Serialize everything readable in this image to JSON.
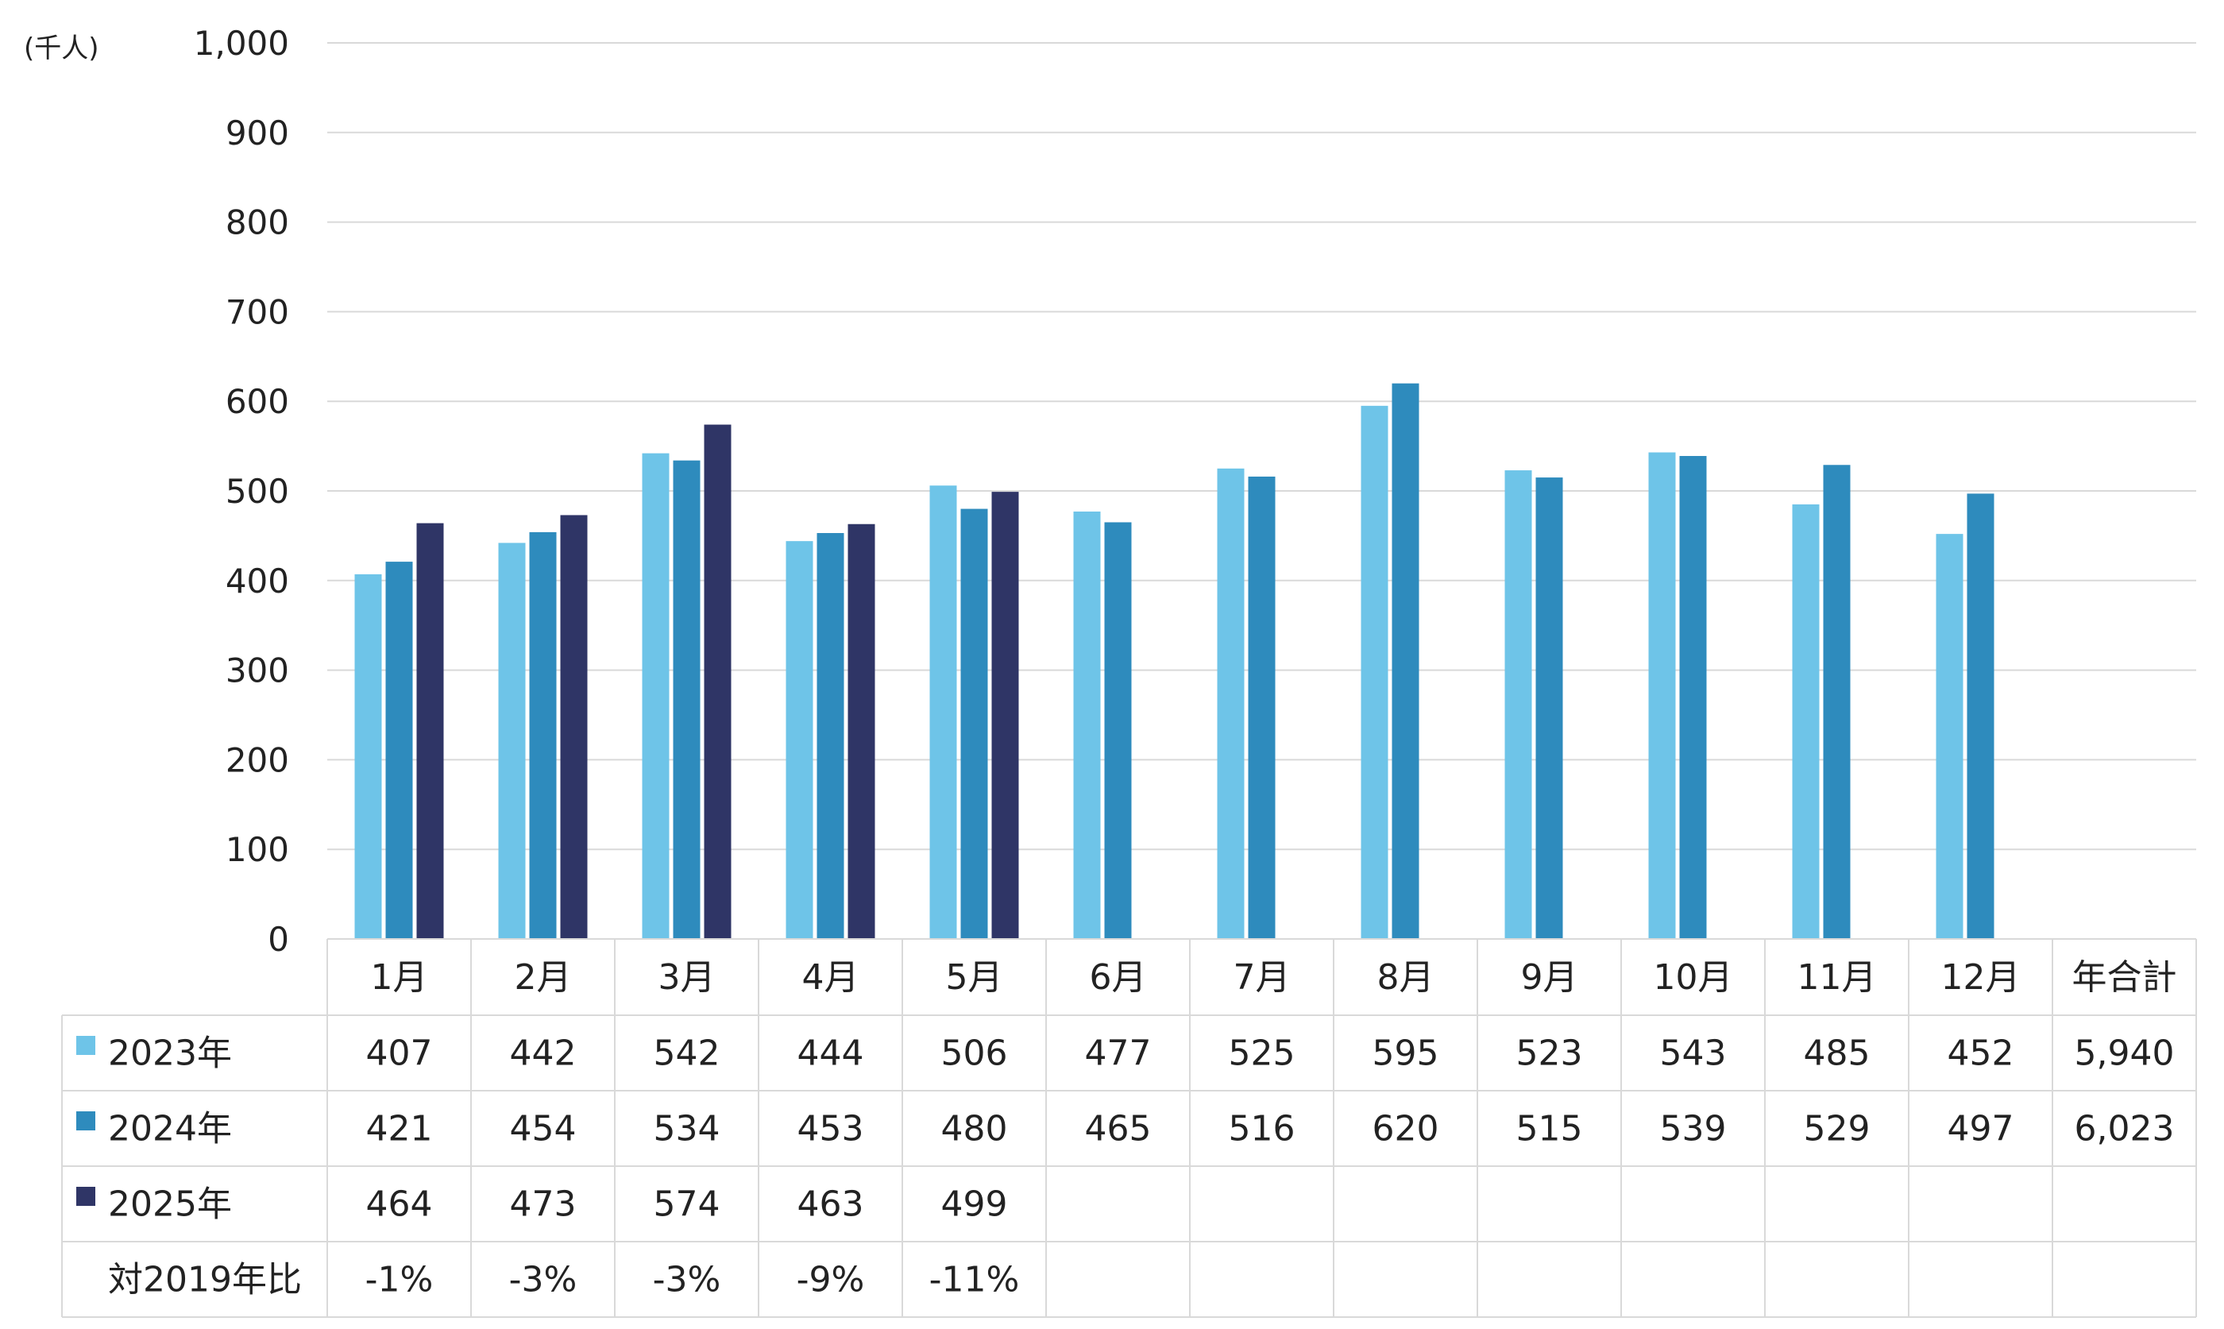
{
  "chart_data": {
    "type": "bar",
    "unit_label": "(千人)",
    "ylim": [
      0,
      1000
    ],
    "yticks": [
      "0",
      "100",
      "200",
      "300",
      "400",
      "500",
      "600",
      "700",
      "800",
      "900",
      "1,000"
    ],
    "categories": [
      "1月",
      "2月",
      "3月",
      "4月",
      "5月",
      "6月",
      "7月",
      "8月",
      "9月",
      "10月",
      "11月",
      "12月"
    ],
    "total_header": "年合計",
    "grid": true,
    "colors": [
      "#6ec4e8",
      "#2e8bbd",
      "#2f3566"
    ],
    "series": [
      {
        "name": "2023年",
        "values": [
          407,
          442,
          542,
          444,
          506,
          477,
          525,
          595,
          523,
          543,
          485,
          452
        ],
        "total": "5,940"
      },
      {
        "name": "2024年",
        "values": [
          421,
          454,
          534,
          453,
          480,
          465,
          516,
          620,
          515,
          539,
          529,
          497
        ],
        "total": "6,023"
      },
      {
        "name": "2025年",
        "values": [
          464,
          473,
          574,
          463,
          499,
          null,
          null,
          null,
          null,
          null,
          null,
          null
        ],
        "total": ""
      }
    ],
    "ratio_row": {
      "label": "対2019年比",
      "values": [
        "-1%",
        "-3%",
        "-3%",
        "-9%",
        "-11%",
        "",
        "",
        "",
        "",
        "",
        "",
        ""
      ]
    }
  }
}
